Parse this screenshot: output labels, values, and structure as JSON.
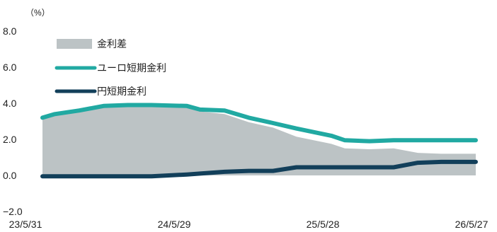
{
  "chart_data": {
    "type": "line",
    "unit_label": "（%）",
    "y_ticks": [
      "8.0",
      "6.0",
      "4.0",
      "2.0",
      "0.0",
      "−2.0"
    ],
    "y_tick_values": [
      8,
      6,
      4,
      2,
      0,
      -2
    ],
    "ylim": [
      -2,
      8
    ],
    "x_ticks": [
      "23/5/31",
      "24/5/29",
      "25/5/28",
      "26/5/27"
    ],
    "xlim": [
      "2023-05-31",
      "2026-05-27"
    ],
    "grid": false,
    "legend_position": "top-left",
    "colors": {
      "spread": "#bcc3c5",
      "euro": "#21a9a2",
      "yen": "#123f5a"
    },
    "legend": [
      {
        "key": "spread",
        "label": "金利差"
      },
      {
        "key": "euro",
        "label": "ユーロ短期金利"
      },
      {
        "key": "yen",
        "label": "円短期金利"
      }
    ],
    "x": [
      "2023-05-31",
      "2023-07-01",
      "2023-09-01",
      "2023-11-01",
      "2024-01-01",
      "2024-03-01",
      "2024-05-29",
      "2024-07-01",
      "2024-09-01",
      "2024-11-01",
      "2025-01-01",
      "2025-03-01",
      "2025-05-28",
      "2025-07-01",
      "2025-09-01",
      "2025-11-01",
      "2026-01-01",
      "2026-03-01",
      "2026-05-27"
    ],
    "series": [
      {
        "key": "euro",
        "name": "ユーロ短期金利",
        "values": [
          3.2,
          3.4,
          3.6,
          3.85,
          3.9,
          3.9,
          3.85,
          3.65,
          3.6,
          3.2,
          2.9,
          2.6,
          2.2,
          1.95,
          1.9,
          1.95,
          1.95,
          1.95,
          1.95
        ]
      },
      {
        "key": "yen",
        "name": "円短期金利",
        "values": [
          -0.05,
          -0.05,
          -0.05,
          -0.05,
          -0.05,
          -0.05,
          0.05,
          0.1,
          0.2,
          0.25,
          0.25,
          0.45,
          0.45,
          0.45,
          0.45,
          0.45,
          0.7,
          0.75,
          0.75
        ]
      },
      {
        "key": "spread",
        "name": "金利差",
        "values": [
          3.25,
          3.45,
          3.65,
          3.9,
          3.95,
          3.95,
          3.8,
          3.55,
          3.4,
          2.95,
          2.65,
          2.15,
          1.75,
          1.5,
          1.45,
          1.5,
          1.25,
          1.2,
          1.2
        ]
      }
    ]
  }
}
